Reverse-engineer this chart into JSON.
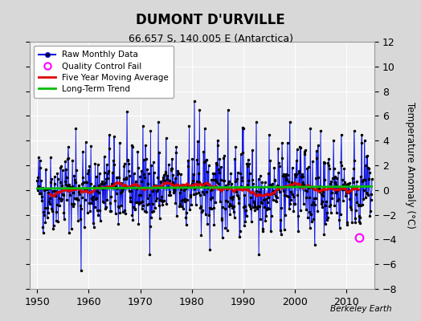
{
  "title": "DUMONT D'URVILLE",
  "subtitle": "66.657 S, 140.005 E (Antarctica)",
  "ylabel": "Temperature Anomaly (°C)",
  "credit": "Berkeley Earth",
  "xlim": [
    1948.5,
    2015.5
  ],
  "ylim": [
    -8,
    12
  ],
  "yticks": [
    -8,
    -6,
    -4,
    -2,
    0,
    2,
    4,
    6,
    8,
    10,
    12
  ],
  "xticks": [
    1950,
    1960,
    1970,
    1980,
    1990,
    2000,
    2010
  ],
  "outer_bg": "#d8d8d8",
  "plot_bg": "#f0f0f0",
  "grid_color": "#ffffff",
  "line_color": "#0000dd",
  "stem_color": "#6688ff",
  "ma_color": "#dd0000",
  "trend_color": "#00bb00",
  "qc_color": "#ff00ff",
  "trend_slope": 0.0025,
  "trend_intercept": 0.12,
  "seed": 42,
  "n_months": 780,
  "start_year": 1950.0,
  "qc_fail_year": 2012.5,
  "qc_fail_val": -3.85
}
